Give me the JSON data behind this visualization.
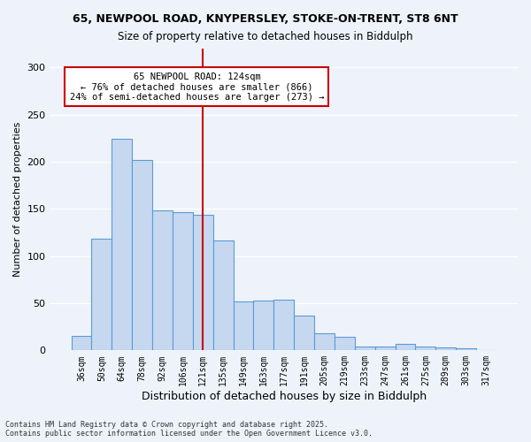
{
  "title1": "65, NEWPOOL ROAD, KNYPERSLEY, STOKE-ON-TRENT, ST8 6NT",
  "title2": "Size of property relative to detached houses in Biddulph",
  "xlabel": "Distribution of detached houses by size in Biddulph",
  "ylabel": "Number of detached properties",
  "categories": [
    "36sqm",
    "50sqm",
    "64sqm",
    "78sqm",
    "92sqm",
    "106sqm",
    "121sqm",
    "135sqm",
    "149sqm",
    "163sqm",
    "177sqm",
    "191sqm",
    "205sqm",
    "219sqm",
    "233sqm",
    "247sqm",
    "261sqm",
    "275sqm",
    "289sqm",
    "303sqm",
    "317sqm"
  ],
  "values": [
    15,
    118,
    224,
    202,
    148,
    147,
    144,
    117,
    52,
    53,
    54,
    37,
    18,
    14,
    4,
    4,
    7,
    4,
    3,
    2,
    0
  ],
  "bar_color": "#c5d8f0",
  "bar_edge_color": "#5b9bd5",
  "vline_x": 6,
  "vline_color": "#cc0000",
  "annotation_text": "65 NEWPOOL ROAD: 124sqm\n← 76% of detached houses are smaller (866)\n24% of semi-detached houses are larger (273) →",
  "annotation_box_color": "#ffffff",
  "annotation_box_edge": "#cc0000",
  "footer": "Contains HM Land Registry data © Crown copyright and database right 2025.\nContains public sector information licensed under the Open Government Licence v3.0.",
  "ylim": [
    0,
    320
  ],
  "background_color": "#eef3fb",
  "grid_color": "#ffffff"
}
